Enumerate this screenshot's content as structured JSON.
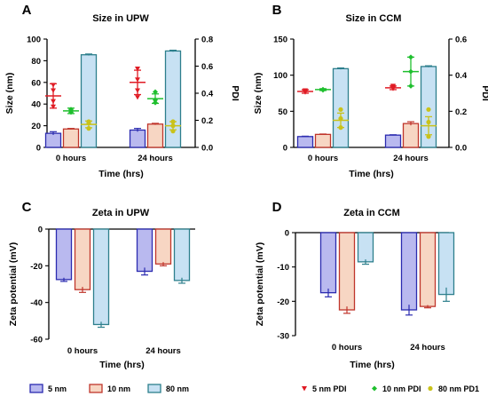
{
  "colors": {
    "nm5": {
      "fill": "#b9b9ef",
      "stroke": "#2b2bb0"
    },
    "nm10": {
      "fill": "#f7d6c3",
      "stroke": "#c0352b"
    },
    "nm80": {
      "fill": "#c7e1f3",
      "stroke": "#2d7f8c"
    },
    "pdi5": "#e01b24",
    "pdi10": "#1fbf2e",
    "pdi80": "#c9c21a"
  },
  "legend": {
    "bars": [
      "5 nm",
      "10 nm",
      "80 nm"
    ],
    "pdi": [
      "5 nm PDI",
      "10 nm PDI",
      "80 nm PD1"
    ]
  },
  "chart_data": [
    {
      "id": "A",
      "letter": "A",
      "type": "bar",
      "title": "Size in UPW",
      "xlabel": "Time (hrs)",
      "ylabel": "Size (nm)",
      "y2label": "PDI",
      "categories": [
        "0 hours",
        "24 hours"
      ],
      "ylim": [
        0,
        100
      ],
      "yticks": [
        "0",
        "20",
        "40",
        "60",
        "80",
        "100"
      ],
      "yticks_values": [
        0,
        20,
        40,
        60,
        80,
        100
      ],
      "y2lim": [
        0,
        0.8
      ],
      "y2ticks": [
        "0.0",
        "0.2",
        "0.4",
        "0.6",
        "0.8"
      ],
      "y2ticks_values": [
        0,
        0.2,
        0.4,
        0.6,
        0.8
      ],
      "series": [
        {
          "name": "5 nm",
          "values": [
            13,
            16
          ],
          "errors": [
            1.5,
            1.5
          ]
        },
        {
          "name": "10 nm",
          "values": [
            17,
            21.5
          ],
          "errors": [
            0.5,
            0.7
          ]
        },
        {
          "name": "80 nm",
          "values": [
            85.5,
            89
          ],
          "errors": [
            0.7,
            0.7
          ]
        }
      ],
      "pdi": [
        {
          "name": "5 nm PDI",
          "means": [
            0.38,
            0.48
          ],
          "errors": [
            0.09,
            0.09
          ],
          "points": [
            [
              0.46,
              0.42,
              0.34,
              0.3
            ],
            [
              0.58,
              0.5,
              0.42,
              0.37
            ]
          ]
        },
        {
          "name": "10 nm PDI",
          "means": [
            0.27,
            0.36
          ],
          "errors": [
            0.02,
            0.035
          ],
          "points": [
            [
              0.28,
              0.27,
              0.26
            ],
            [
              0.41,
              0.35,
              0.33
            ]
          ]
        },
        {
          "name": "80 nm PD1",
          "means": [
            0.17,
            0.16
          ],
          "errors": [
            0.025,
            0.03
          ],
          "points": [
            [
              0.19,
              0.18,
              0.14
            ],
            [
              0.19,
              0.16,
              0.12
            ]
          ]
        }
      ]
    },
    {
      "id": "B",
      "letter": "B",
      "type": "bar",
      "title": "Size in CCM",
      "xlabel": "Time (hrs)",
      "ylabel": "Size (nm)",
      "y2label": "PDI",
      "categories": [
        "0 hours",
        "24 hours"
      ],
      "ylim": [
        0,
        150
      ],
      "yticks": [
        "0",
        "50",
        "100",
        "150"
      ],
      "yticks_values": [
        0,
        50,
        100,
        150
      ],
      "y2lim": [
        0,
        0.6
      ],
      "y2ticks": [
        "0.0",
        "0.2",
        "0.4",
        "0.6"
      ],
      "y2ticks_values": [
        0,
        0.2,
        0.4,
        0.6
      ],
      "series": [
        {
          "name": "5 nm",
          "values": [
            15,
            17
          ],
          "errors": [
            0.5,
            0.5
          ]
        },
        {
          "name": "10 nm",
          "values": [
            18,
            33
          ],
          "errors": [
            0.5,
            2.5
          ]
        },
        {
          "name": "80 nm",
          "values": [
            109,
            112
          ],
          "errors": [
            1,
            1
          ]
        }
      ],
      "pdi": [
        {
          "name": "5 nm PDI",
          "means": [
            0.31,
            0.33
          ],
          "errors": [
            0.01,
            0.01
          ],
          "points": [
            [
              0.315,
              0.31,
              0.305
            ],
            [
              0.34,
              0.335,
              0.325
            ]
          ]
        },
        {
          "name": "10 nm PDI",
          "means": [
            0.32,
            0.42
          ],
          "errors": [
            0.005,
            0.08
          ],
          "points": [
            [
              0.32,
              0.32,
              0.318
            ],
            [
              0.5,
              0.42,
              0.34
            ]
          ]
        },
        {
          "name": "80 nm PD1",
          "means": [
            0.15,
            0.12
          ],
          "errors": [
            0.04,
            0.05
          ],
          "points": [
            [
              0.21,
              0.16,
              0.11
            ],
            [
              0.21,
              0.14,
              0.06
            ]
          ]
        }
      ]
    },
    {
      "id": "C",
      "letter": "C",
      "type": "bar",
      "title": "Zeta in UPW",
      "xlabel": "Time (hrs)",
      "ylabel": "Zeta potential (mV)",
      "categories": [
        "0 hours",
        "24 hours"
      ],
      "ylim": [
        -60,
        0
      ],
      "yticks": [
        "0",
        "-20",
        "-40",
        "-60"
      ],
      "yticks_values": [
        0,
        -20,
        -40,
        -60
      ],
      "series": [
        {
          "name": "5 nm",
          "values": [
            -27.5,
            -23
          ],
          "errors": [
            1,
            2
          ]
        },
        {
          "name": "10 nm",
          "values": [
            -33,
            -19
          ],
          "errors": [
            1.5,
            1
          ]
        },
        {
          "name": "80 nm",
          "values": [
            -52,
            -28
          ],
          "errors": [
            1.5,
            1.5
          ]
        }
      ]
    },
    {
      "id": "D",
      "letter": "D",
      "type": "bar",
      "title": "Zeta in CCM",
      "xlabel": "Time (hrs)",
      "ylabel": "Zeta potential (mV)",
      "categories": [
        "0 hours",
        "24 hours"
      ],
      "ylim": [
        -30,
        0
      ],
      "yticks": [
        "0",
        "-10",
        "-20",
        "-30"
      ],
      "yticks_values": [
        0,
        -10,
        -20,
        -30
      ],
      "series": [
        {
          "name": "5 nm",
          "values": [
            -17.5,
            -22.5
          ],
          "errors": [
            1.2,
            1.5
          ]
        },
        {
          "name": "10 nm",
          "values": [
            -22.5,
            -21.5
          ],
          "errors": [
            1,
            0.4
          ]
        },
        {
          "name": "80 nm",
          "values": [
            -8.5,
            -18
          ],
          "errors": [
            0.7,
            2
          ]
        }
      ]
    }
  ]
}
